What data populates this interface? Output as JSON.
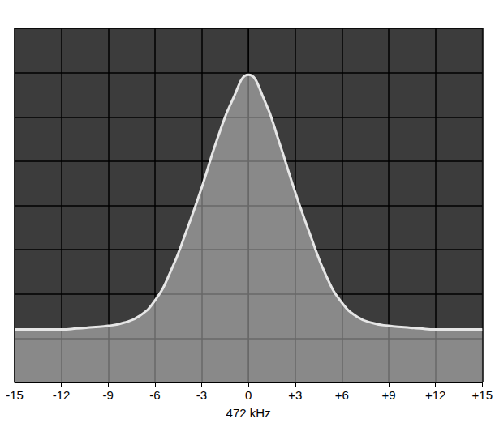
{
  "chart_data": {
    "type": "area",
    "x_label": "472 kHz",
    "x": [
      -15,
      -14,
      -13,
      -12,
      -11,
      -10,
      -9,
      -8,
      -7,
      -6,
      -5,
      -4,
      -3,
      -2,
      -1,
      0,
      1,
      2,
      3,
      4,
      5,
      6,
      7,
      8,
      9,
      10,
      11,
      12,
      13,
      14,
      15
    ],
    "values": [
      0.2,
      0.2,
      0.2,
      0.2,
      0.22,
      0.25,
      0.28,
      0.35,
      0.5,
      0.85,
      1.5,
      2.4,
      3.4,
      4.5,
      5.4,
      5.95,
      5.4,
      4.4,
      3.3,
      2.3,
      1.4,
      0.8,
      0.48,
      0.34,
      0.28,
      0.25,
      0.22,
      0.2,
      0.2,
      0.2,
      0.2
    ],
    "color": "#e6e6e6",
    "xlim": [
      -15,
      15
    ],
    "xticks": [
      -15,
      -12,
      -9,
      -6,
      -3,
      0,
      {
        "value": 3,
        "label": "+3"
      },
      {
        "value": 6,
        "label": "+6"
      },
      {
        "value": 9,
        "label": "+9"
      },
      {
        "value": 12,
        "label": "+12"
      },
      {
        "value": 15,
        "label": "+15"
      }
    ],
    "ylim": [
      -1,
      7
    ],
    "yticks": [
      -1,
      0,
      1,
      2,
      3,
      4,
      5,
      6,
      7
    ],
    "grid": true,
    "tick_labels": "x"
  }
}
